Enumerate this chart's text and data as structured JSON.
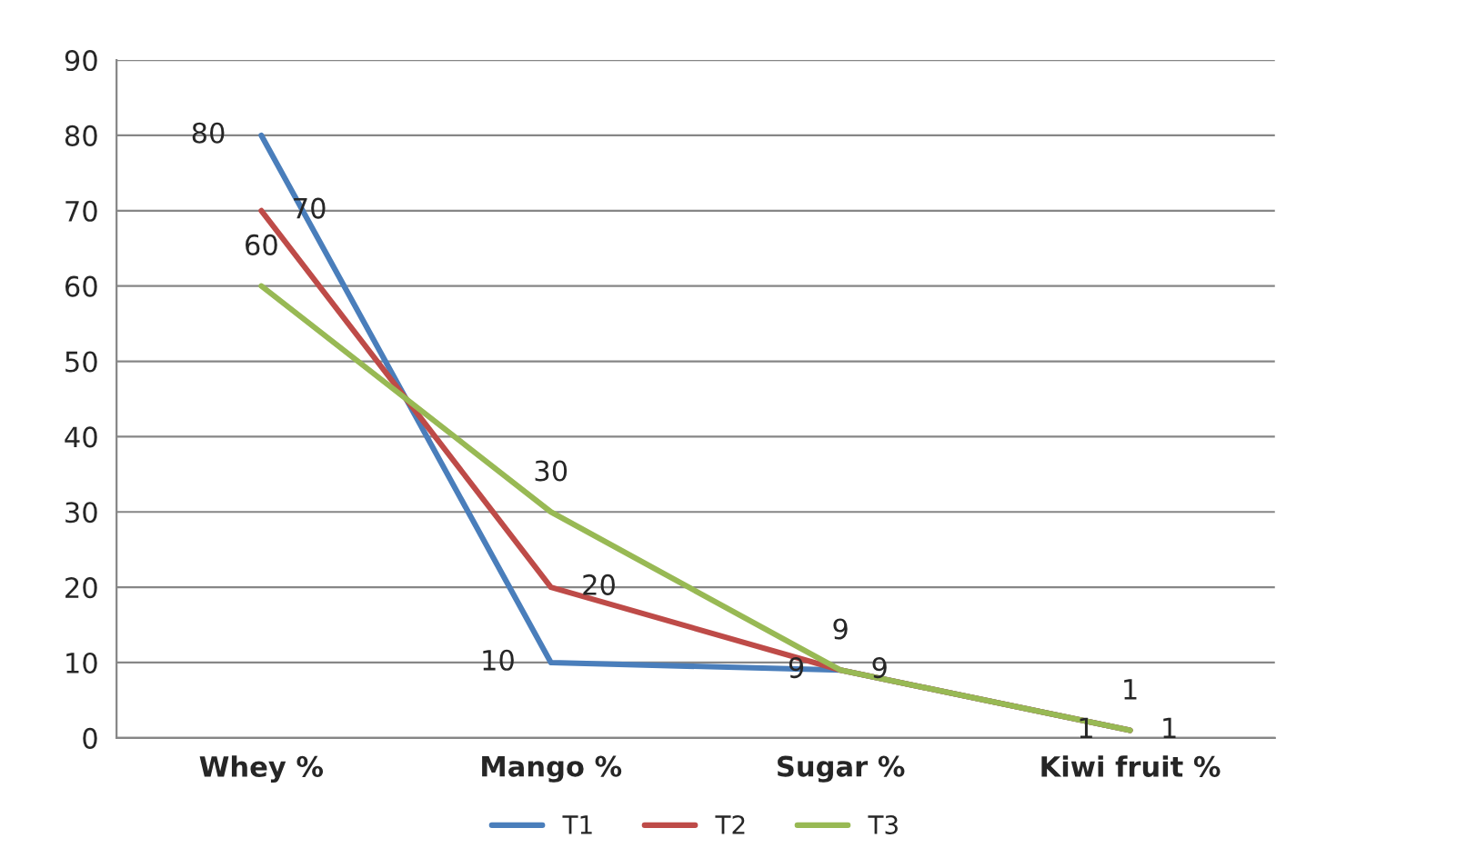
{
  "chart_data": {
    "type": "line",
    "categories": [
      "Whey %",
      "Mango %",
      "Sugar %",
      "Kiwi fruit %"
    ],
    "series": [
      {
        "name": "T1",
        "color": "#4a7ebb",
        "values": [
          80,
          10,
          9,
          1
        ]
      },
      {
        "name": "T2",
        "color": "#be4b48",
        "values": [
          70,
          20,
          9,
          1
        ]
      },
      {
        "name": "T3",
        "color": "#98b954",
        "values": [
          60,
          30,
          9,
          1
        ]
      }
    ],
    "ylim": [
      0,
      90
    ],
    "yticks": [
      0,
      10,
      20,
      30,
      40,
      50,
      60,
      70,
      80,
      90
    ],
    "grid": "y",
    "legend": "bottom",
    "data_labels": true,
    "marker": "none",
    "line_style": "solid"
  }
}
